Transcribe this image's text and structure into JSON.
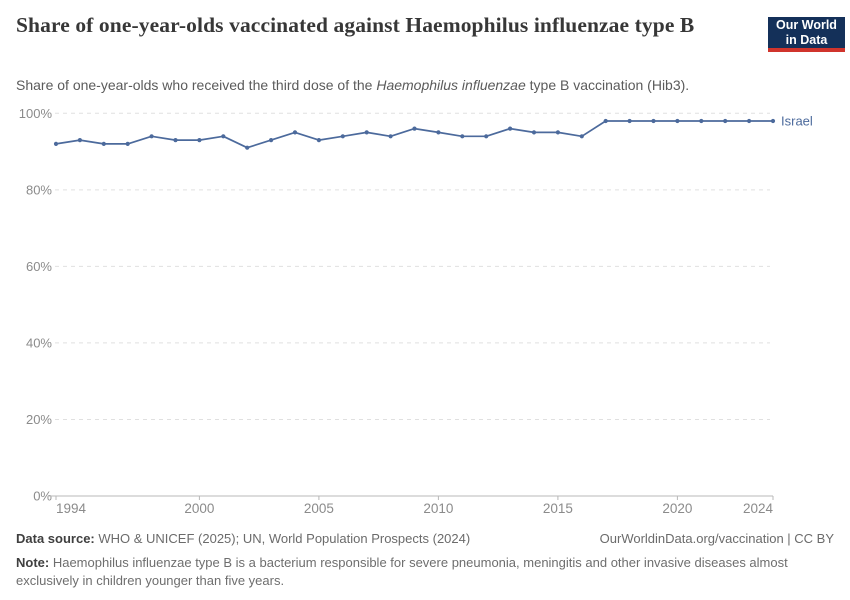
{
  "header": {
    "title": "Share of one-year-olds vaccinated against Haemophilus influenzae type B",
    "subtitle": {
      "pre": "Share of one-year-olds who received the third dose of the ",
      "italic": "Haemophilus influenzae",
      "post": " type B vaccination (Hib3)."
    },
    "logo": {
      "line1": "Our World",
      "line2": "in Data",
      "bg_color": "#143059",
      "bar_color": "#D0342C"
    }
  },
  "chart_data": {
    "type": "line",
    "title": "Share of one-year-olds vaccinated against Haemophilus influenzae type B",
    "xlabel": "",
    "ylabel": "",
    "xlim": [
      1994,
      2024
    ],
    "ylim": [
      0,
      100
    ],
    "x_ticks": [
      1994,
      2000,
      2005,
      2010,
      2015,
      2020,
      2024
    ],
    "y_ticks": [
      0,
      20,
      40,
      60,
      80,
      100
    ],
    "y_tick_suffix": "%",
    "grid": "horizontal-dashed",
    "legend_position": "line-end-label",
    "colors": {
      "line": "#4C6A9C",
      "gridline": "#e0e0e0",
      "axis": "#b8b8b8",
      "tick_label": "#8b8b8b"
    },
    "series": [
      {
        "name": "Israel",
        "color": "#4C6A9C",
        "x": [
          1994,
          1995,
          1996,
          1997,
          1998,
          1999,
          2000,
          2001,
          2002,
          2003,
          2004,
          2005,
          2006,
          2007,
          2008,
          2009,
          2010,
          2011,
          2012,
          2013,
          2014,
          2015,
          2016,
          2017,
          2018,
          2019,
          2020,
          2021,
          2022,
          2023,
          2024
        ],
        "values": [
          92,
          93,
          92,
          92,
          94,
          93,
          93,
          94,
          91,
          93,
          95,
          93,
          94,
          95,
          94,
          96,
          95,
          94,
          94,
          96,
          95,
          95,
          94,
          98,
          98,
          98,
          98,
          98,
          98,
          98,
          98
        ]
      }
    ]
  },
  "footer": {
    "data_source_label": "Data source:",
    "data_source_text": " WHO & UNICEF (2025); UN, World Population Prospects (2024)",
    "link_text": "OurWorldinData.org/vaccination | CC BY",
    "note_label": "Note:",
    "note_text": " Haemophilus influenzae type B is a bacterium responsible for severe pneumonia, meningitis and other invasive diseases almost exclusively in children younger than five years."
  }
}
